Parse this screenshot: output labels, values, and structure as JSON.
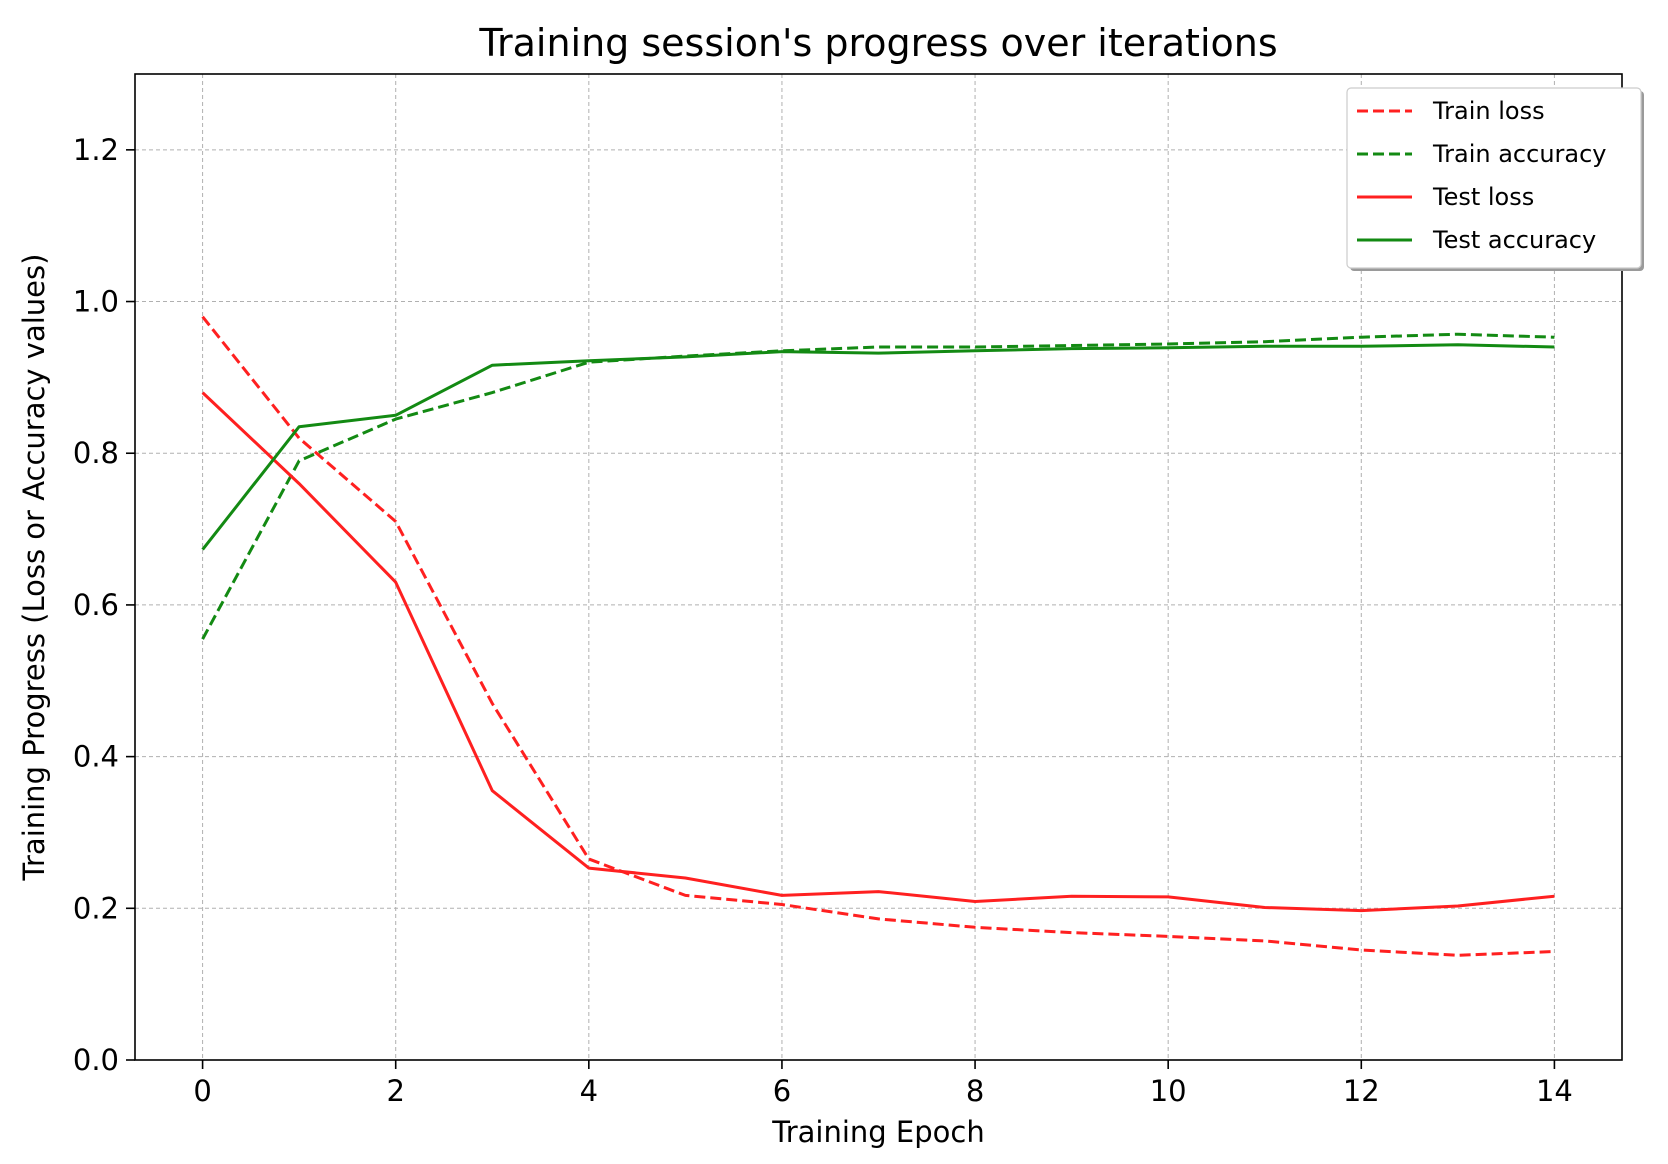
{
  "chart_data": {
    "type": "line",
    "title": "Training session's progress over iterations",
    "xlabel": "Training Epoch",
    "ylabel": "Training Progress (Loss or Accuracy values)",
    "xlim": [
      -0.7,
      14.7
    ],
    "ylim": [
      0.0,
      1.3
    ],
    "xticks": [
      0,
      2,
      4,
      6,
      8,
      10,
      12,
      14
    ],
    "xtick_labels": [
      "0",
      "2",
      "4",
      "6",
      "8",
      "10",
      "12",
      "14"
    ],
    "yticks": [
      0.0,
      0.2,
      0.4,
      0.6,
      0.8,
      1.0,
      1.2
    ],
    "ytick_labels": [
      "0.0",
      "0.2",
      "0.4",
      "0.6",
      "0.8",
      "1.0",
      "1.2"
    ],
    "grid": true,
    "legend_position": "top-right",
    "x": [
      0,
      1,
      2,
      3,
      4,
      5,
      6,
      7,
      8,
      9,
      10,
      11,
      12,
      13,
      14
    ],
    "series": [
      {
        "name": "Train loss",
        "color": "#ff2020",
        "style": "dashed",
        "values": [
          0.98,
          0.82,
          0.71,
          0.47,
          0.265,
          0.217,
          0.205,
          0.186,
          0.175,
          0.168,
          0.163,
          0.157,
          0.145,
          0.138,
          0.143
        ]
      },
      {
        "name": "Train accuracy",
        "color": "#138a13",
        "style": "dashed",
        "values": [
          0.555,
          0.79,
          0.845,
          0.88,
          0.92,
          0.928,
          0.935,
          0.94,
          0.94,
          0.942,
          0.944,
          0.947,
          0.953,
          0.957,
          0.953
        ]
      },
      {
        "name": "Test loss",
        "color": "#ff2020",
        "style": "solid",
        "values": [
          0.88,
          0.76,
          0.63,
          0.355,
          0.253,
          0.24,
          0.217,
          0.222,
          0.209,
          0.216,
          0.215,
          0.201,
          0.197,
          0.203,
          0.216
        ]
      },
      {
        "name": "Test accuracy",
        "color": "#138a13",
        "style": "solid",
        "values": [
          0.673,
          0.835,
          0.85,
          0.916,
          0.922,
          0.927,
          0.934,
          0.932,
          0.935,
          0.938,
          0.939,
          0.941,
          0.941,
          0.943,
          0.94
        ]
      }
    ]
  }
}
